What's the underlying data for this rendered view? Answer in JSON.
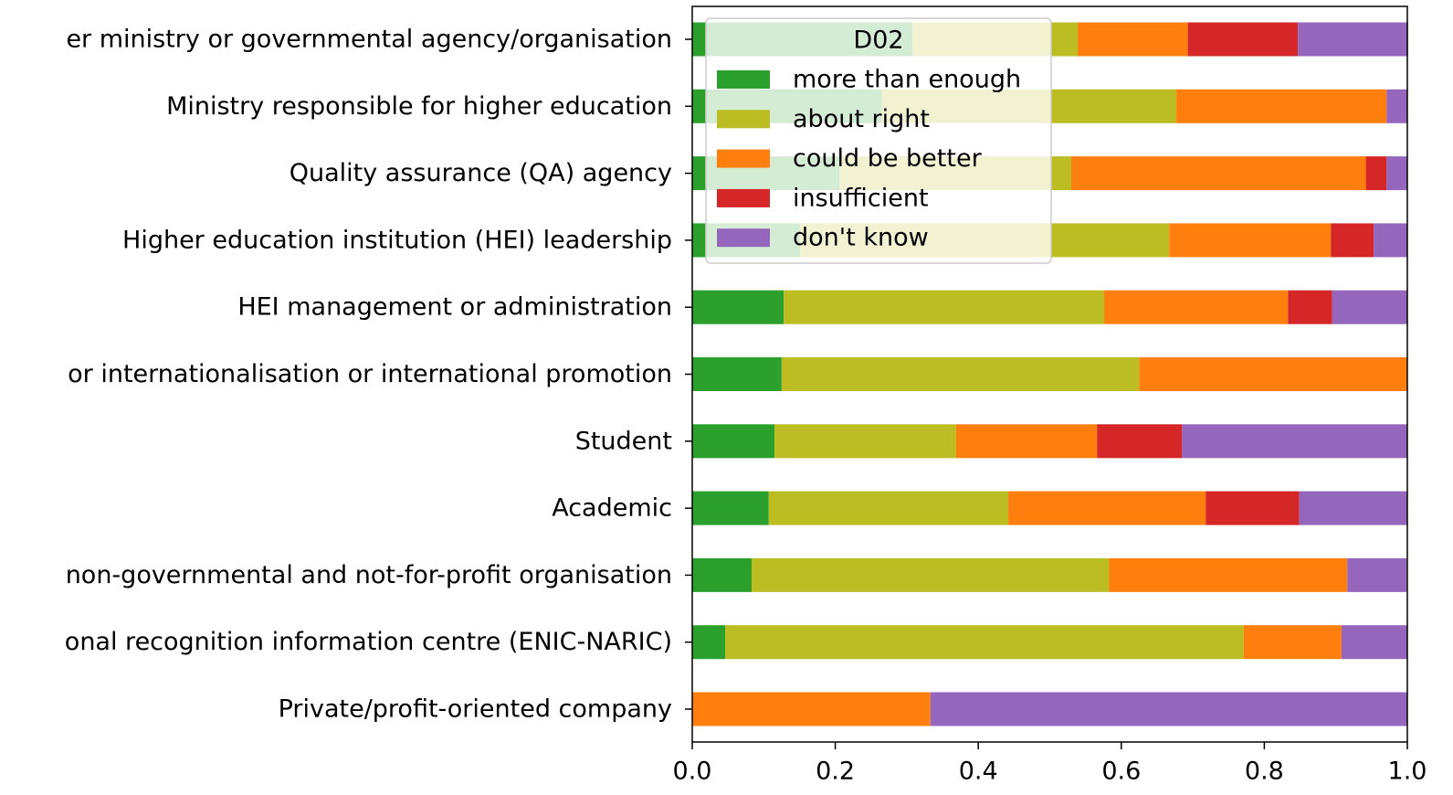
{
  "chart_data": {
    "type": "barh-stacked",
    "categories": [
      "er ministry or governmental agency/organisation",
      "Ministry responsible for higher education",
      "Quality assurance (QA) agency",
      "Higher education institution (HEI) leadership",
      "HEI management or administration",
      "or internationalisation or international promotion",
      "Student",
      "Academic",
      "non-governmental and not-for-profit organisation",
      "onal recognition information centre (ENIC-NARIC)",
      "Private/profit-oriented company"
    ],
    "series": [
      {
        "name": "more than enough",
        "color": "#2ca02c",
        "values": [
          0.308,
          0.265,
          0.206,
          0.151,
          0.128,
          0.125,
          0.115,
          0.107,
          0.083,
          0.046,
          0
        ]
      },
      {
        "name": "about right",
        "color": "#bcbd22",
        "values": [
          0.231,
          0.412,
          0.324,
          0.516,
          0.448,
          0.5,
          0.254,
          0.335,
          0.5,
          0.725,
          0
        ]
      },
      {
        "name": "could be better",
        "color": "#ff7f0e",
        "values": [
          0.154,
          0.294,
          0.412,
          0.226,
          0.257,
          0.375,
          0.197,
          0.276,
          0.333,
          0.137,
          0.333
        ]
      },
      {
        "name": "insufficient",
        "color": "#d62728",
        "values": [
          0.154,
          0,
          0.029,
          0.06,
          0.062,
          0,
          0.119,
          0.131,
          0,
          0,
          0
        ]
      },
      {
        "name": "don't know",
        "color": "#9467bd",
        "values": [
          0.154,
          0.029,
          0.029,
          0.047,
          0.105,
          0,
          0.315,
          0.151,
          0.083,
          0.092,
          0.667
        ]
      }
    ],
    "legend_title": "D02",
    "legend": "upper left",
    "xlim": [
      0,
      1.0
    ],
    "xticks": [
      {
        "value": 0,
        "label": "0.0"
      },
      0.2,
      0.4,
      0.6,
      0.8,
      {
        "value": 1.0,
        "label": "1.0"
      }
    ]
  }
}
